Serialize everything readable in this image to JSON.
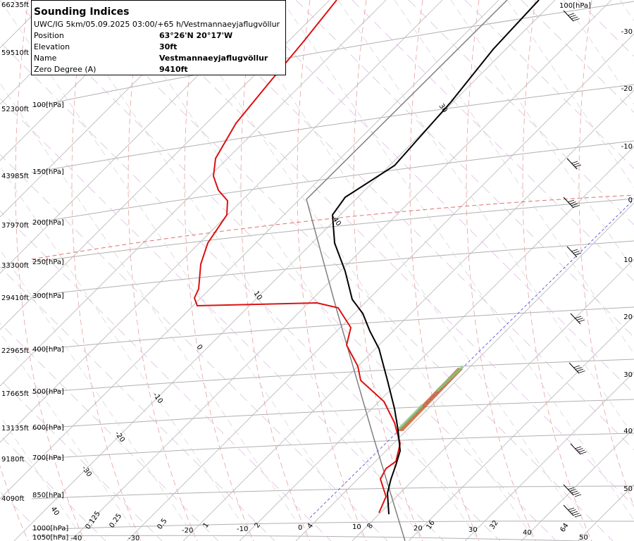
{
  "info": {
    "title": "Sounding Indices",
    "subtitle": "UWC/IG 5km/05.09.2025 03:00/+65 h/Vestmannaeyjaflugvöllur",
    "rows": [
      {
        "key": "Position",
        "value": "63°26'N 20°17'W"
      },
      {
        "key": "Elevation",
        "value": "30ft"
      },
      {
        "key": "Name",
        "value": "Vestmannaeyjaflugvöllur"
      },
      {
        "key": "Zero Degree (A)",
        "value": "9410ft"
      }
    ]
  },
  "altitude_labels": [
    "66235ft",
    "59510ft",
    "52300ft",
    "43985ft",
    "37970ft",
    "33300ft",
    "29410ft",
    "22965ft",
    "17665ft",
    "13135ft",
    "9180ft",
    "4090ft"
  ],
  "pressure_labels": [
    "100[hPa]",
    "150[hPa]",
    "200[hPa]",
    "250[hPa]",
    "300[hPa]",
    "400[hPa]",
    "500[hPa]",
    "600[hPa]",
    "700[hPa]",
    "850[hPa]",
    "1000[hPa]",
    "1050[hPa]"
  ],
  "top_pressure_label": "100[hPa]",
  "isotherm_bottom_labels": [
    "-40",
    "-30",
    "-20",
    "-10",
    "0",
    "10",
    "20",
    "30",
    "40",
    "50"
  ],
  "right_temp_labels": [
    "-30",
    "-20",
    "-10",
    "0",
    "10",
    "20",
    "30",
    "40",
    "50"
  ],
  "mixing_ratio_labels": [
    "0.125",
    "0.25",
    "0.5",
    "1",
    "2",
    "4",
    "8",
    "16",
    "32",
    "64"
  ],
  "adiabat_labels": [
    "40",
    "30",
    "10",
    "0",
    "-10",
    "-20",
    "-30",
    "-40",
    "40"
  ],
  "colors": {
    "temperature": "#000000",
    "dewpoint": "#dd1111",
    "parcel": "#808080",
    "isotherm_zero": "#e07070",
    "lcl_line": "#4444cc"
  }
}
